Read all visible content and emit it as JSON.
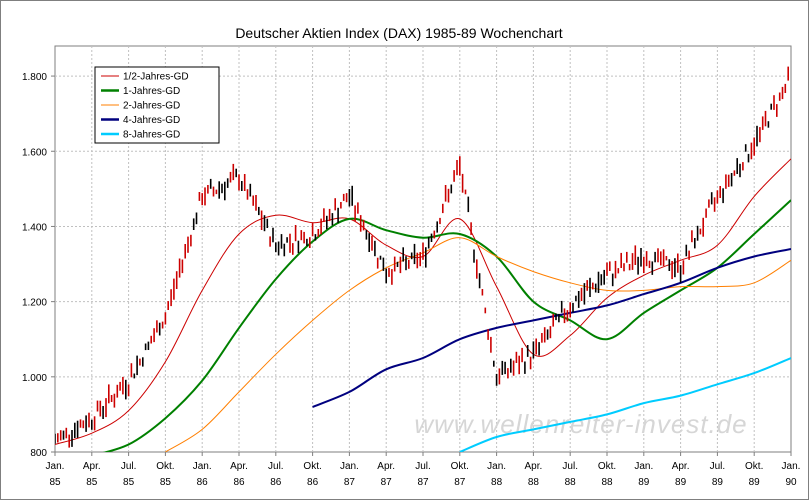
{
  "chart_data": {
    "type": "line",
    "title": "Deutscher Aktien Index (DAX) 1985-89 Wochenchart",
    "xlabel": "",
    "ylabel": "",
    "ylim": [
      800,
      1880
    ],
    "y_ticks": [
      "800",
      "1.000",
      "1.200",
      "1.400",
      "1.600",
      "1.800"
    ],
    "y_tick_values": [
      800,
      1000,
      1200,
      1400,
      1600,
      1800
    ],
    "x_ticks": [
      {
        "month": "Jan.",
        "year": "85"
      },
      {
        "month": "Apr.",
        "year": "85"
      },
      {
        "month": "Jul.",
        "year": "85"
      },
      {
        "month": "Okt.",
        "year": "85"
      },
      {
        "month": "Jan.",
        "year": "86"
      },
      {
        "month": "Apr.",
        "year": "86"
      },
      {
        "month": "Jul.",
        "year": "86"
      },
      {
        "month": "Okt.",
        "year": "86"
      },
      {
        "month": "Jan.",
        "year": "87"
      },
      {
        "month": "Apr.",
        "year": "87"
      },
      {
        "month": "Jul.",
        "year": "87"
      },
      {
        "month": "Okt.",
        "year": "87"
      },
      {
        "month": "Jan.",
        "year": "88"
      },
      {
        "month": "Apr.",
        "year": "88"
      },
      {
        "month": "Jul.",
        "year": "88"
      },
      {
        "month": "Okt.",
        "year": "88"
      },
      {
        "month": "Jan.",
        "year": "89"
      },
      {
        "month": "Apr.",
        "year": "89"
      },
      {
        "month": "Jul.",
        "year": "89"
      },
      {
        "month": "Okt.",
        "year": "89"
      },
      {
        "month": "Jan.",
        "year": "90"
      }
    ],
    "grid": true,
    "legend_position": "top-left",
    "watermark": "www.wellenreiter-invest.de",
    "price_series": {
      "name": "DAX",
      "color": "#cc0000",
      "quarter": [
        0,
        1,
        2,
        3,
        4,
        5,
        6,
        7,
        8,
        9,
        10,
        11,
        12,
        13,
        14,
        15,
        16,
        17,
        18,
        19,
        20
      ],
      "values": [
        830,
        890,
        990,
        1160,
        1480,
        1530,
        1350,
        1380,
        1480,
        1280,
        1320,
        1560,
        1000,
        1060,
        1190,
        1270,
        1320,
        1290,
        1480,
        1620,
        1800
      ]
    },
    "series": [
      {
        "name": "1/2-Jahres-GD",
        "color": "#cc0000",
        "width": 1,
        "quarter": [
          0,
          1,
          2,
          3,
          4,
          5,
          6,
          7,
          8,
          9,
          10,
          11,
          12,
          13,
          14,
          15,
          16,
          17,
          18,
          19,
          20
        ],
        "values": [
          820,
          850,
          910,
          1040,
          1230,
          1380,
          1430,
          1410,
          1420,
          1350,
          1320,
          1420,
          1240,
          1060,
          1110,
          1210,
          1270,
          1310,
          1350,
          1480,
          1580
        ]
      },
      {
        "name": "1-Jahres-GD",
        "color": "#008000",
        "width": 2,
        "quarter": [
          1,
          2,
          3,
          4,
          5,
          6,
          7,
          8,
          9,
          10,
          11,
          12,
          13,
          14,
          15,
          16,
          17,
          18,
          19,
          20
        ],
        "values": [
          790,
          820,
          890,
          990,
          1130,
          1260,
          1360,
          1420,
          1390,
          1370,
          1380,
          1320,
          1200,
          1150,
          1100,
          1170,
          1230,
          1290,
          1380,
          1470
        ]
      },
      {
        "name": "2-Jahres-GD",
        "color": "#ff7f00",
        "width": 1,
        "quarter": [
          3,
          4,
          5,
          6,
          7,
          8,
          9,
          10,
          11,
          12,
          13,
          14,
          15,
          16,
          17,
          18,
          19,
          20
        ],
        "values": [
          800,
          860,
          960,
          1060,
          1150,
          1230,
          1290,
          1330,
          1370,
          1320,
          1280,
          1250,
          1230,
          1230,
          1240,
          1240,
          1250,
          1310
        ]
      },
      {
        "name": "4-Jahres-GD",
        "color": "#00007f",
        "width": 2,
        "quarter": [
          7,
          8,
          9,
          10,
          11,
          12,
          13,
          14,
          15,
          16,
          17,
          18,
          19,
          20
        ],
        "values": [
          920,
          960,
          1020,
          1050,
          1100,
          1130,
          1150,
          1170,
          1190,
          1220,
          1250,
          1290,
          1320,
          1340
        ]
      },
      {
        "name": "8-Jahres-GD",
        "color": "#00ccff",
        "width": 2,
        "quarter": [
          11,
          12,
          13,
          14,
          15,
          16,
          17,
          18,
          19,
          20
        ],
        "values": [
          800,
          840,
          860,
          880,
          900,
          930,
          950,
          980,
          1010,
          1050
        ]
      }
    ]
  }
}
